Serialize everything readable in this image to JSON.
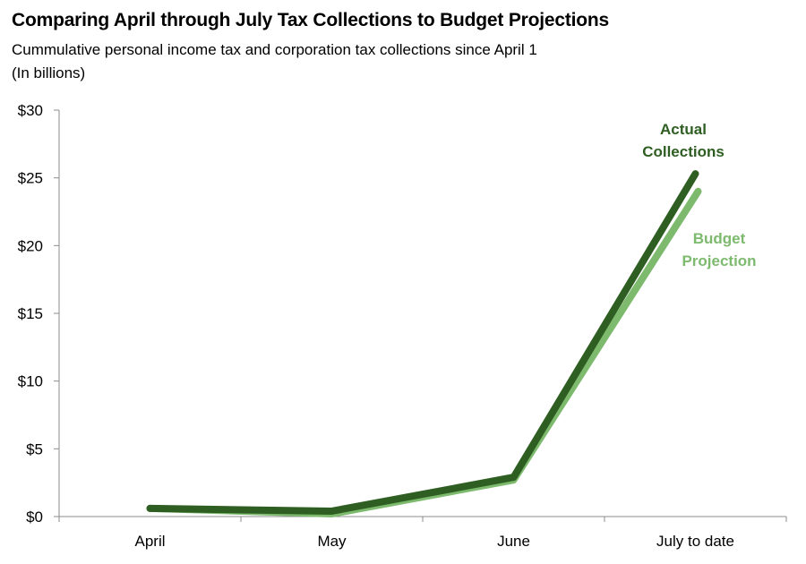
{
  "chart_data": {
    "type": "line",
    "title": "Comparing April through July Tax Collections to Budget Projections",
    "subtitle_lines": [
      "Cummulative personal income tax and corporation tax collections  since April 1",
      "(In billions)"
    ],
    "categories": [
      "April",
      "May",
      "June",
      "July to date"
    ],
    "ylim": [
      0,
      30
    ],
    "yticks": [
      0,
      5,
      10,
      15,
      20,
      25,
      30
    ],
    "ytick_labels": [
      "$0",
      "$5",
      "$10",
      "$15",
      "$20",
      "$25",
      "$30"
    ],
    "grid": false,
    "series": [
      {
        "name": "Budget Projection",
        "label_lines": [
          "Budget",
          "Projection"
        ],
        "color": "#7dba6e",
        "values": [
          0.6,
          0.2,
          2.7,
          24.0
        ]
      },
      {
        "name": "Actual Collections",
        "label_lines": [
          "Actual",
          "Collections"
        ],
        "color": "#2e5e22",
        "values": [
          0.6,
          0.4,
          2.9,
          25.3
        ]
      }
    ]
  }
}
